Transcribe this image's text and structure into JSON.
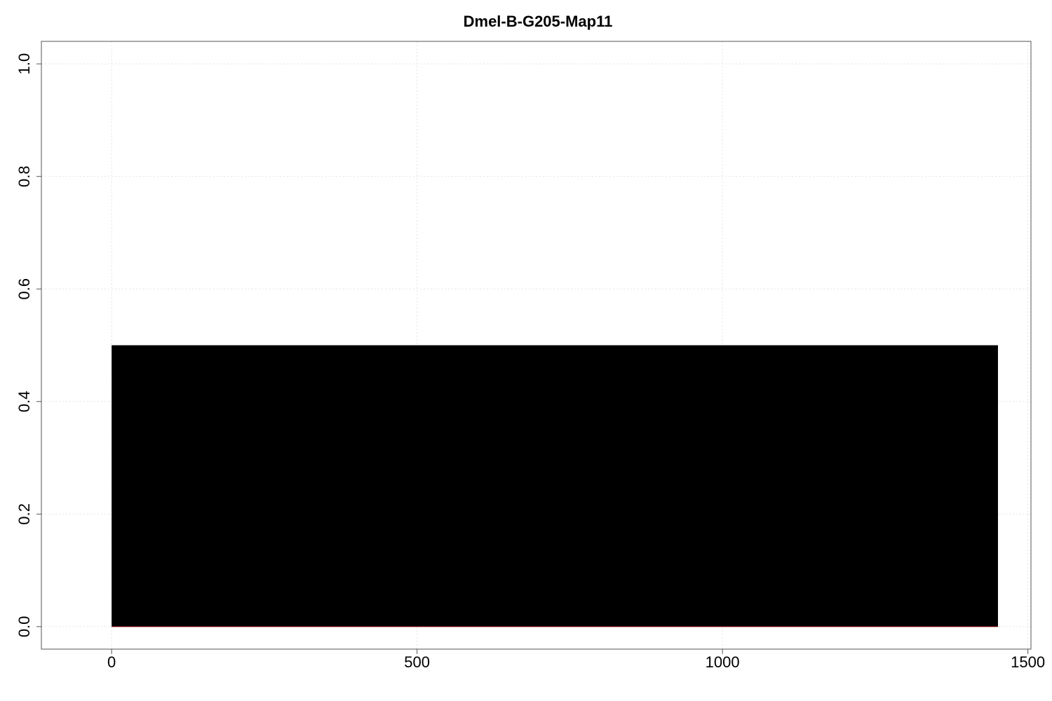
{
  "chart_data": {
    "type": "bar",
    "title": "Dmel-B-G205-Map11",
    "xlabel": "",
    "ylabel": "",
    "xlim": [
      -115,
      1505
    ],
    "ylim": [
      -0.04,
      1.04
    ],
    "x_ticks": [
      0,
      500,
      1000,
      1500
    ],
    "x_tick_labels": [
      "0",
      "500",
      "1000",
      "1500"
    ],
    "y_ticks": [
      0.0,
      0.2,
      0.4,
      0.6,
      0.8,
      1.0
    ],
    "y_tick_labels": [
      "0.0",
      "0.2",
      "0.4",
      "0.6",
      "0.8",
      "1.0"
    ],
    "grid": true,
    "bars": [
      {
        "x_start": 0,
        "x_end": 1451,
        "value": 0.5
      }
    ],
    "colors": {
      "bar": "#000000",
      "baseline": "#8b0000",
      "grid": "#e3e3e3",
      "axis": "#555555"
    }
  }
}
